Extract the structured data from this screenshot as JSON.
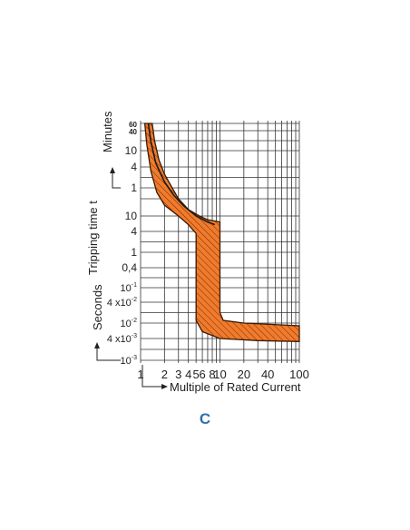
{
  "chart_data": {
    "type": "area",
    "title": "",
    "subtitle": "C",
    "xlabel": "Multiple of Rated Current",
    "ylabel": "Tripping time t",
    "ylabel_upper": "Minutes",
    "ylabel_lower": "Seconds",
    "x_scale": "log",
    "y_scale": "log",
    "xlim": [
      1,
      100
    ],
    "x_tick_labels": [
      "1",
      "2",
      "3",
      "4",
      "5",
      "6",
      "8",
      "10",
      "20",
      "40",
      "100"
    ],
    "x_tick_values": [
      1,
      2,
      3,
      4,
      5,
      6,
      8,
      10,
      20,
      40,
      100
    ],
    "y_ticks": [
      {
        "label": "60",
        "seconds": 3600,
        "unit": "min"
      },
      {
        "label": "40",
        "seconds": 2400,
        "unit": "min"
      },
      {
        "label": "10",
        "seconds": 600,
        "unit": "min"
      },
      {
        "label": "4",
        "seconds": 240,
        "unit": "min"
      },
      {
        "label": "1",
        "seconds": 60,
        "unit": "min"
      },
      {
        "label": "10",
        "seconds": 10,
        "unit": "s"
      },
      {
        "label": "4",
        "seconds": 4,
        "unit": "s"
      },
      {
        "label": "1",
        "seconds": 1,
        "unit": "s"
      },
      {
        "label": "0,4",
        "seconds": 0.4,
        "unit": "s"
      },
      {
        "label": "10",
        "sup": "-1",
        "seconds": 0.1,
        "unit": "s"
      },
      {
        "label": "4 x10",
        "sup": "-2",
        "seconds": 0.04,
        "unit": "s"
      },
      {
        "label": "10",
        "sup": "-2",
        "seconds": 0.01,
        "unit": "s"
      },
      {
        "label": "4 x10",
        "sup": "-3",
        "seconds": 0.004,
        "unit": "s"
      },
      {
        "label": "10",
        "sup": "-3",
        "seconds": 0.001,
        "unit": "s"
      }
    ],
    "band_upper": [
      {
        "x": 1.4,
        "y": 3600
      },
      {
        "x": 1.5,
        "y": 1200
      },
      {
        "x": 1.7,
        "y": 360
      },
      {
        "x": 2.0,
        "y": 150
      },
      {
        "x": 2.5,
        "y": 60
      },
      {
        "x": 3.0,
        "y": 30
      },
      {
        "x": 4.0,
        "y": 15
      },
      {
        "x": 5.5,
        "y": 10
      },
      {
        "x": 7.0,
        "y": 8
      },
      {
        "x": 10,
        "y": 7
      },
      {
        "x": 10,
        "y": 0.02
      },
      {
        "x": 11,
        "y": 0.012
      },
      {
        "x": 20,
        "y": 0.01
      },
      {
        "x": 100,
        "y": 0.0085
      }
    ],
    "band_lower": [
      {
        "x": 1.13,
        "y": 3600
      },
      {
        "x": 1.2,
        "y": 900
      },
      {
        "x": 1.35,
        "y": 180
      },
      {
        "x": 1.6,
        "y": 45
      },
      {
        "x": 2.0,
        "y": 20
      },
      {
        "x": 3.0,
        "y": 10
      },
      {
        "x": 4.0,
        "y": 6
      },
      {
        "x": 4.5,
        "y": 4.5
      },
      {
        "x": 5.0,
        "y": 3.5
      },
      {
        "x": 5.0,
        "y": 0.012
      },
      {
        "x": 6.0,
        "y": 0.006
      },
      {
        "x": 10,
        "y": 0.004
      },
      {
        "x": 30,
        "y": 0.0035
      },
      {
        "x": 100,
        "y": 0.0033
      }
    ],
    "center_line": [
      {
        "x": 1.25,
        "y": 3600
      },
      {
        "x": 1.35,
        "y": 1100
      },
      {
        "x": 1.55,
        "y": 300
      },
      {
        "x": 2.0,
        "y": 90
      },
      {
        "x": 2.6,
        "y": 38
      },
      {
        "x": 3.5,
        "y": 19
      },
      {
        "x": 5.0,
        "y": 10
      },
      {
        "x": 7.0,
        "y": 7
      },
      {
        "x": 8.6,
        "y": 6
      }
    ],
    "band_color": "#f07b2c",
    "hatch_color": "#7a2d05",
    "grid": true
  }
}
